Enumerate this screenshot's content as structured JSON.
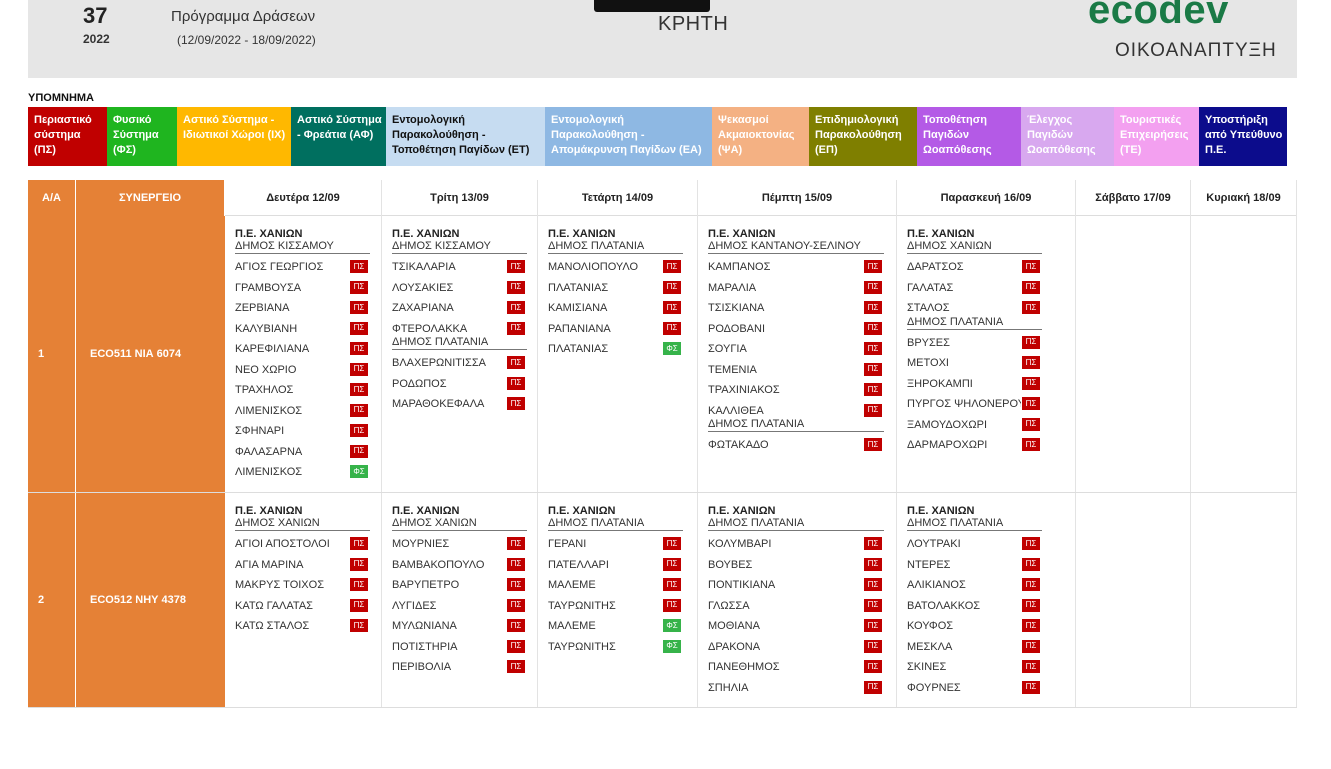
{
  "header": {
    "week": "37",
    "year": "2022",
    "title": "Πρόγραμμα Δράσεων",
    "dates": "(12/09/2022 - 18/09/2022)",
    "region": "ΚΡΗΤΗ",
    "logo": "ecodev",
    "logo_sub": "ΟΙΚΟΑΝΑΠΤΥΞΗ"
  },
  "legend": {
    "title": "ΥΠΟΜΝΗΜΑ",
    "items": [
      {
        "label": "Περιαστικό σύστημα (ΠΣ)",
        "bg": "#c00000",
        "fg": "#ffffff"
      },
      {
        "label": "Φυσικό Σύστημα (ΦΣ)",
        "bg": "#1fb51f",
        "fg": "#ffffff"
      },
      {
        "label": "Αστικό Σύστημα - Ιδιωτικοί Χώροι (ΙΧ)",
        "bg": "#ffb800",
        "fg": "#ffffff"
      },
      {
        "label": "Αστικό Σύστημα - Φρεάτια (ΑΦ)",
        "bg": "#006f5f",
        "fg": "#ffffff"
      },
      {
        "label": "Εντομολογική Παρακολούθηση - Τοποθέτηση Παγίδων (ΕΤ)",
        "bg": "#c6dcf1",
        "fg": "#111111"
      },
      {
        "label": "Εντομολογική Παρακολούθηση - Απομάκρυνση Παγίδων (ΕΑ)",
        "bg": "#8eb8e3",
        "fg": "#ffffff"
      },
      {
        "label": "Ψεκασμοί Ακμαιοκτονίας (ΨΑ)",
        "bg": "#f4b183",
        "fg": "#ffffff"
      },
      {
        "label": "Επιδημιολογική Παρακολούθηση (ΕΠ)",
        "bg": "#7f7f00",
        "fg": "#ffffff"
      },
      {
        "label": "Τοποθέτηση Παγιδών Ωοαπόθεσης",
        "bg": "#b45ae6",
        "fg": "#ffffff"
      },
      {
        "label": "Έλεγχος Παγιδών Ωοαπόθεσης",
        "bg": "#d8a8ef",
        "fg": "#ffffff"
      },
      {
        "label": "Τουριστικές Επιχειρήσεις (ΤΕ)",
        "bg": "#f3a0f0",
        "fg": "#ffffff"
      },
      {
        "label": "Υποστήριξη από Υπεύθυνο Π.Ε.",
        "bg": "#0c0c8c",
        "fg": "#ffffff"
      }
    ]
  },
  "table": {
    "col_aa": "Α/Α",
    "col_team": "ΣΥΝΕΡΓΕΙΟ",
    "days": [
      "Δευτέρα 12/09",
      "Τρίτη 13/09",
      "Τετάρτη 14/09",
      "Πέμπτη 15/09",
      "Παρασκευή 16/09",
      "Σάββατο 17/09",
      "Κυριακή 18/09"
    ],
    "rows": [
      {
        "aa": "1",
        "team": "ECO511  ΝΙΑ 6074",
        "days": [
          {
            "pe": "Π.Ε. ΧΑΝΙΩΝ",
            "groups": [
              {
                "dimos": "ΔΗΜΟΣ ΚΙΣΣΑΜΟΥ",
                "items": [
                  {
                    "name": "ΑΓΙΟΣ ΓΕΩΡΓΙΟΣ",
                    "tag": "ΠΣ"
                  },
                  {
                    "name": "ΓΡΑΜΒΟΥΣΑ",
                    "tag": "ΠΣ"
                  },
                  {
                    "name": "ΖΕΡΒΙΑΝΑ",
                    "tag": "ΠΣ"
                  },
                  {
                    "name": "ΚΑΛΥΒΙΑΝΗ",
                    "tag": "ΠΣ"
                  },
                  {
                    "name": "ΚΑΡΕΦΙΛΙΑΝΑ",
                    "tag": "ΠΣ"
                  },
                  {
                    "name": "ΝΕΟ ΧΩΡΙΟ",
                    "tag": "ΠΣ"
                  },
                  {
                    "name": "ΤΡΑΧΗΛΟΣ",
                    "tag": "ΠΣ"
                  },
                  {
                    "name": "ΛΙΜΕΝΙΣΚΟΣ",
                    "tag": "ΠΣ"
                  },
                  {
                    "name": "ΣΦΗΝΑΡΙ",
                    "tag": "ΠΣ"
                  },
                  {
                    "name": "ΦΑΛΑΣΑΡΝΑ",
                    "tag": "ΠΣ"
                  },
                  {
                    "name": "ΛΙΜΕΝΙΣΚΟΣ",
                    "tag": "ΦΣ"
                  }
                ]
              }
            ]
          },
          {
            "pe": "Π.Ε. ΧΑΝΙΩΝ",
            "groups": [
              {
                "dimos": "ΔΗΜΟΣ ΚΙΣΣΑΜΟΥ",
                "items": [
                  {
                    "name": "ΤΣΙΚΑΛΑΡΙΑ",
                    "tag": "ΠΣ"
                  },
                  {
                    "name": "ΛΟΥΣΑΚΙΕΣ",
                    "tag": "ΠΣ"
                  },
                  {
                    "name": "ΖΑΧΑΡΙΑΝΑ",
                    "tag": "ΠΣ"
                  },
                  {
                    "name": "ΦΤΕΡΟΛΑΚΚΑ",
                    "tag": "ΠΣ"
                  }
                ]
              },
              {
                "dimos": "ΔΗΜΟΣ ΠΛΑΤΑΝΙΑ",
                "items": [
                  {
                    "name": "ΒΛΑΧΕΡΩΝΙΤΙΣΣΑ",
                    "tag": "ΠΣ"
                  },
                  {
                    "name": "ΡΟΔΩΠΟΣ",
                    "tag": "ΠΣ"
                  },
                  {
                    "name": "ΜΑΡΑΘΟΚΕΦΑΛΑ",
                    "tag": "ΠΣ"
                  }
                ]
              }
            ]
          },
          {
            "pe": "Π.Ε. ΧΑΝΙΩΝ",
            "groups": [
              {
                "dimos": "ΔΗΜΟΣ ΠΛΑΤΑΝΙΑ",
                "items": [
                  {
                    "name": "ΜΑΝΟΛΙΟΠΟΥΛΟ",
                    "tag": "ΠΣ"
                  },
                  {
                    "name": "ΠΛΑΤΑΝΙΑΣ",
                    "tag": "ΠΣ"
                  },
                  {
                    "name": "ΚΑΜΙΣΙΑΝΑ",
                    "tag": "ΠΣ"
                  },
                  {
                    "name": "ΡΑΠΑΝΙΑΝΑ",
                    "tag": "ΠΣ"
                  },
                  {
                    "name": "ΠΛΑΤΑΝΙΑΣ",
                    "tag": "ΦΣ"
                  }
                ]
              }
            ]
          },
          {
            "pe": "Π.Ε. ΧΑΝΙΩΝ",
            "groups": [
              {
                "dimos": "ΔΗΜΟΣ ΚΑΝΤΑΝΟΥ-ΣΕΛΙΝΟΥ",
                "items": [
                  {
                    "name": "ΚΑΜΠΑΝΟΣ",
                    "tag": "ΠΣ"
                  },
                  {
                    "name": "ΜΑΡΑΛΙΑ",
                    "tag": "ΠΣ"
                  },
                  {
                    "name": "ΤΣΙΣΚΙΑΝΑ",
                    "tag": "ΠΣ"
                  },
                  {
                    "name": "ΡΟΔΟΒΑΝΙ",
                    "tag": "ΠΣ"
                  },
                  {
                    "name": "ΣΟΥΓΙΑ",
                    "tag": "ΠΣ"
                  },
                  {
                    "name": "ΤΕΜΕΝΙΑ",
                    "tag": "ΠΣ"
                  },
                  {
                    "name": "ΤΡΑΧΙΝΙΑΚΟΣ",
                    "tag": "ΠΣ"
                  },
                  {
                    "name": "ΚΑΛΛΙΘΕΑ",
                    "tag": "ΠΣ"
                  }
                ]
              },
              {
                "dimos": "ΔΗΜΟΣ ΠΛΑΤΑΝΙΑ",
                "items": [
                  {
                    "name": "ΦΩΤΑΚΑΔΟ",
                    "tag": "ΠΣ"
                  }
                ]
              }
            ]
          },
          {
            "pe": "Π.Ε. ΧΑΝΙΩΝ",
            "groups": [
              {
                "dimos": "ΔΗΜΟΣ ΧΑΝΙΩΝ",
                "items": [
                  {
                    "name": "ΔΑΡΑΤΣΟΣ",
                    "tag": "ΠΣ"
                  },
                  {
                    "name": "ΓΑΛΑΤΑΣ",
                    "tag": "ΠΣ"
                  },
                  {
                    "name": "ΣΤΑΛΟΣ",
                    "tag": "ΠΣ"
                  }
                ]
              },
              {
                "dimos": "ΔΗΜΟΣ ΠΛΑΤΑΝΙΑ",
                "items": [
                  {
                    "name": "ΒΡΥΣΕΣ",
                    "tag": "ΠΣ"
                  },
                  {
                    "name": "ΜΕΤΟΧΙ",
                    "tag": "ΠΣ"
                  },
                  {
                    "name": "ΞΗΡΟΚΑΜΠΙ",
                    "tag": "ΠΣ"
                  },
                  {
                    "name": "ΠΥΡΓΟΣ ΨΗΛΟΝΕΡΟΥ",
                    "tag": "ΠΣ"
                  },
                  {
                    "name": "ΞΑΜΟΥΔΟΧΩΡΙ",
                    "tag": "ΠΣ"
                  },
                  {
                    "name": "ΔΑΡΜΑΡΟΧΩΡΙ",
                    "tag": "ΠΣ"
                  }
                ]
              }
            ]
          },
          {
            "pe": "",
            "groups": []
          },
          {
            "pe": "",
            "groups": []
          }
        ]
      },
      {
        "aa": "2",
        "team": "ECO512  ΝΗΥ 4378",
        "days": [
          {
            "pe": "Π.Ε. ΧΑΝΙΩΝ",
            "groups": [
              {
                "dimos": "ΔΗΜΟΣ ΧΑΝΙΩΝ",
                "items": [
                  {
                    "name": "ΑΓΙΟΙ ΑΠΟΣΤΟΛΟΙ",
                    "tag": "ΠΣ"
                  },
                  {
                    "name": "ΑΓΙΑ ΜΑΡΙΝΑ",
                    "tag": "ΠΣ"
                  },
                  {
                    "name": "ΜΑΚΡΥΣ ΤΟΙΧΟΣ",
                    "tag": "ΠΣ"
                  },
                  {
                    "name": "ΚΑΤΩ ΓΑΛΑΤΑΣ",
                    "tag": "ΠΣ"
                  },
                  {
                    "name": "ΚΑΤΩ ΣΤΑΛΟΣ",
                    "tag": "ΠΣ"
                  }
                ]
              }
            ]
          },
          {
            "pe": "Π.Ε. ΧΑΝΙΩΝ",
            "groups": [
              {
                "dimos": "ΔΗΜΟΣ ΧΑΝΙΩΝ",
                "items": [
                  {
                    "name": "ΜΟΥΡΝΙΕΣ",
                    "tag": "ΠΣ"
                  },
                  {
                    "name": "ΒΑΜΒΑΚΟΠΟΥΛΟ",
                    "tag": "ΠΣ"
                  },
                  {
                    "name": "ΒΑΡΥΠΕΤΡΟ",
                    "tag": "ΠΣ"
                  },
                  {
                    "name": "ΛΥΓΙΔΕΣ",
                    "tag": "ΠΣ"
                  },
                  {
                    "name": "ΜΥΛΩΝΙΑΝΑ",
                    "tag": "ΠΣ"
                  },
                  {
                    "name": "ΠΟΤΙΣΤΗΡΙΑ",
                    "tag": "ΠΣ"
                  },
                  {
                    "name": "ΠΕΡΙΒΟΛΙΑ",
                    "tag": "ΠΣ"
                  }
                ]
              }
            ]
          },
          {
            "pe": "Π.Ε. ΧΑΝΙΩΝ",
            "groups": [
              {
                "dimos": "ΔΗΜΟΣ ΠΛΑΤΑΝΙΑ",
                "items": [
                  {
                    "name": "ΓΕΡΑΝΙ",
                    "tag": "ΠΣ"
                  },
                  {
                    "name": "ΠΑΤΕΛΛΑΡΙ",
                    "tag": "ΠΣ"
                  },
                  {
                    "name": "ΜΑΛΕΜΕ",
                    "tag": "ΠΣ"
                  },
                  {
                    "name": "ΤΑΥΡΩΝΙΤΗΣ",
                    "tag": "ΠΣ"
                  },
                  {
                    "name": "ΜΑΛΕΜΕ",
                    "tag": "ΦΣ"
                  },
                  {
                    "name": "ΤΑΥΡΩΝΙΤΗΣ",
                    "tag": "ΦΣ"
                  }
                ]
              }
            ]
          },
          {
            "pe": "Π.Ε. ΧΑΝΙΩΝ",
            "groups": [
              {
                "dimos": "ΔΗΜΟΣ ΠΛΑΤΑΝΙΑ",
                "items": [
                  {
                    "name": "ΚΟΛΥΜΒΑΡΙ",
                    "tag": "ΠΣ"
                  },
                  {
                    "name": "ΒΟΥΒΕΣ",
                    "tag": "ΠΣ"
                  },
                  {
                    "name": "ΠΟΝΤΙΚΙΑΝΑ",
                    "tag": "ΠΣ"
                  },
                  {
                    "name": "ΓΛΩΣΣΑ",
                    "tag": "ΠΣ"
                  },
                  {
                    "name": "ΜΟΘΙΑΝΑ",
                    "tag": "ΠΣ"
                  },
                  {
                    "name": "ΔΡΑΚΟΝΑ",
                    "tag": "ΠΣ"
                  },
                  {
                    "name": "ΠΑΝΕΘΗΜΟΣ",
                    "tag": "ΠΣ"
                  },
                  {
                    "name": "ΣΠΗΛΙΑ",
                    "tag": "ΠΣ"
                  }
                ]
              }
            ]
          },
          {
            "pe": "Π.Ε. ΧΑΝΙΩΝ",
            "groups": [
              {
                "dimos": "ΔΗΜΟΣ ΠΛΑΤΑΝΙΑ",
                "items": [
                  {
                    "name": "ΛΟΥΤΡΑΚΙ",
                    "tag": "ΠΣ"
                  },
                  {
                    "name": "ΝΤΕΡΕΣ",
                    "tag": "ΠΣ"
                  },
                  {
                    "name": "ΑΛΙΚΙΑΝΟΣ",
                    "tag": "ΠΣ"
                  },
                  {
                    "name": "ΒΑΤΟΛΑΚΚΟΣ",
                    "tag": "ΠΣ"
                  },
                  {
                    "name": "ΚΟΥΦΟΣ",
                    "tag": "ΠΣ"
                  },
                  {
                    "name": "ΜΕΣΚΛΑ",
                    "tag": "ΠΣ"
                  },
                  {
                    "name": "ΣΚΙΝΕΣ",
                    "tag": "ΠΣ"
                  },
                  {
                    "name": "ΦΟΥΡΝΕΣ",
                    "tag": "ΠΣ"
                  }
                ]
              }
            ]
          },
          {
            "pe": "",
            "groups": []
          },
          {
            "pe": "",
            "groups": []
          }
        ]
      }
    ]
  }
}
